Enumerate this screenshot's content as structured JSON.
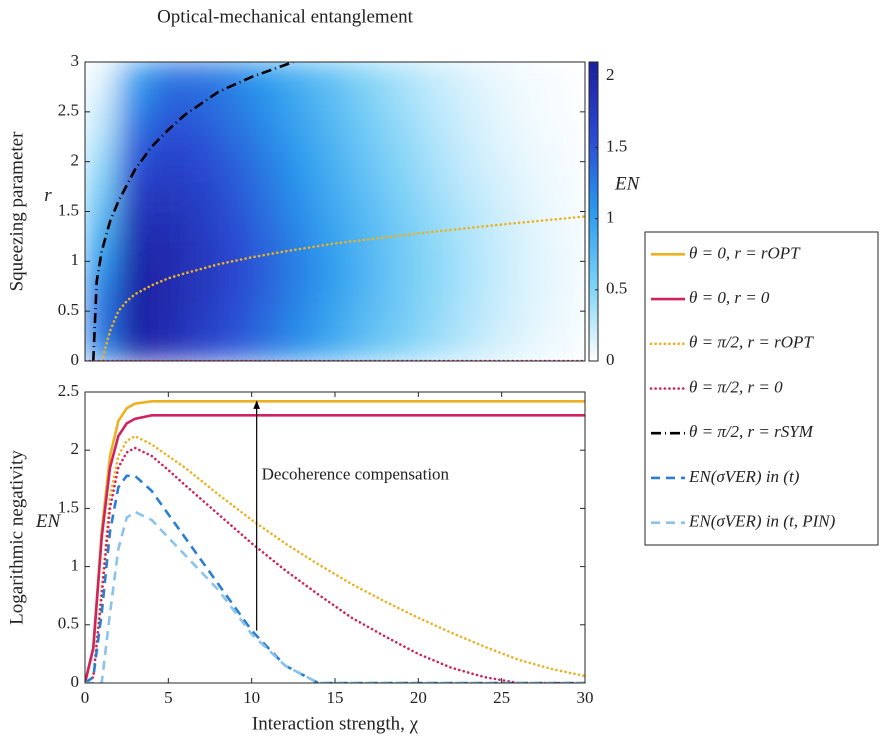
{
  "chart_data": [
    {
      "type": "heatmap",
      "title": "Optical-mechanical entanglement",
      "ylabel": "Squeezing parameter",
      "ylabel_symbol": "r",
      "xlim": [
        0,
        30
      ],
      "ylim": [
        0,
        3
      ],
      "yticks": [
        0,
        0.5,
        1,
        1.5,
        2,
        2.5,
        3
      ],
      "clim": [
        0,
        2.1
      ],
      "cticks": [
        0,
        0.5,
        1,
        1.5,
        2
      ],
      "clabel": "EN",
      "colormap": [
        "#ffffff",
        "#7fd3f7",
        "#2a9bee",
        "#2b49d2",
        "#1c1f9e"
      ],
      "x": [
        1,
        3,
        5,
        7,
        9,
        11,
        13,
        15,
        17,
        19,
        21,
        23,
        25,
        27,
        29
      ],
      "y": [
        0.15,
        0.45,
        0.75,
        1.05,
        1.35,
        1.65,
        1.95,
        2.25,
        2.55,
        2.85
      ],
      "z": [
        [
          1.2,
          2.0,
          1.9,
          1.7,
          1.5,
          1.3,
          1.1,
          0.9,
          0.7,
          0.55,
          0.4,
          0.28,
          0.18,
          0.1,
          0.05
        ],
        [
          1.3,
          2.05,
          1.95,
          1.75,
          1.55,
          1.35,
          1.15,
          0.95,
          0.75,
          0.6,
          0.45,
          0.32,
          0.2,
          0.12,
          0.06
        ],
        [
          1.2,
          2.05,
          1.95,
          1.8,
          1.6,
          1.4,
          1.2,
          1.0,
          0.8,
          0.62,
          0.47,
          0.34,
          0.22,
          0.13,
          0.07
        ],
        [
          1.0,
          2.0,
          1.95,
          1.8,
          1.6,
          1.4,
          1.2,
          1.0,
          0.8,
          0.62,
          0.47,
          0.34,
          0.22,
          0.13,
          0.07
        ],
        [
          0.8,
          1.9,
          1.9,
          1.75,
          1.55,
          1.35,
          1.15,
          0.95,
          0.77,
          0.6,
          0.45,
          0.32,
          0.21,
          0.12,
          0.06
        ],
        [
          0.6,
          1.75,
          1.8,
          1.7,
          1.5,
          1.3,
          1.1,
          0.9,
          0.72,
          0.55,
          0.4,
          0.28,
          0.18,
          0.1,
          0.05
        ],
        [
          0.45,
          1.55,
          1.7,
          1.6,
          1.45,
          1.25,
          1.05,
          0.85,
          0.67,
          0.5,
          0.36,
          0.24,
          0.15,
          0.08,
          0.04
        ],
        [
          0.3,
          1.35,
          1.6,
          1.5,
          1.35,
          1.17,
          0.98,
          0.8,
          0.62,
          0.46,
          0.32,
          0.21,
          0.12,
          0.06,
          0.03
        ],
        [
          0.2,
          1.15,
          1.45,
          1.4,
          1.27,
          1.1,
          0.92,
          0.74,
          0.56,
          0.41,
          0.28,
          0.18,
          0.1,
          0.05,
          0.02
        ],
        [
          0.1,
          0.95,
          1.3,
          1.3,
          1.2,
          1.02,
          0.85,
          0.68,
          0.5,
          0.36,
          0.24,
          0.15,
          0.08,
          0.04,
          0.02
        ]
      ],
      "series": [
        {
          "color": "#000000",
          "dash": "dashdot",
          "x": [
            0.5,
            0.7,
            1,
            1.5,
            2,
            3,
            4,
            5,
            6,
            8,
            10,
            12.5
          ],
          "values": [
            0,
            0.8,
            1.1,
            1.4,
            1.6,
            1.92,
            2.15,
            2.32,
            2.47,
            2.7,
            2.85,
            3.0
          ]
        },
        {
          "color": "#edb120",
          "dash": "dotted",
          "x": [
            1,
            1.5,
            2,
            2.5,
            3,
            4,
            5,
            6,
            8,
            10,
            12,
            15,
            20,
            25,
            30
          ],
          "values": [
            0,
            0.3,
            0.5,
            0.6,
            0.67,
            0.76,
            0.83,
            0.88,
            0.97,
            1.04,
            1.1,
            1.18,
            1.28,
            1.37,
            1.45
          ]
        },
        {
          "color": "#cf2361",
          "dash": "dotted",
          "x": [
            0,
            30
          ],
          "values": [
            0,
            0
          ]
        }
      ]
    },
    {
      "type": "line",
      "xlabel": "Interaction strength, χ",
      "ylabel": "Logarithmic negativity",
      "ylabel_symbol": "EN",
      "xlim": [
        0,
        30
      ],
      "ylim": [
        0,
        2.5
      ],
      "xticks": [
        0,
        5,
        10,
        15,
        20,
        25,
        30
      ],
      "yticks": [
        0,
        0.5,
        1,
        1.5,
        2,
        2.5
      ],
      "annotation": {
        "text": "Decoherence compensation",
        "x": 10.6,
        "y": 1.78,
        "arrow_x": 10.3,
        "arrow_from": 0.45,
        "arrow_to": 2.42
      },
      "x": [
        0,
        0.5,
        1,
        1.5,
        2,
        2.5,
        3,
        4,
        5,
        6,
        8,
        10,
        12,
        14,
        16,
        18,
        20,
        22,
        24,
        26,
        28,
        30
      ],
      "series": [
        {
          "name": "θ = 0, r = rOPT",
          "color": "#edb120",
          "dash": "solid",
          "values": [
            0,
            0.3,
            1.3,
            1.95,
            2.25,
            2.36,
            2.4,
            2.42,
            2.42,
            2.42,
            2.42,
            2.42,
            2.42,
            2.42,
            2.42,
            2.42,
            2.42,
            2.42,
            2.42,
            2.42,
            2.42,
            2.42
          ]
        },
        {
          "name": "θ = 0, r = 0",
          "color": "#cf2361",
          "dash": "solid",
          "values": [
            0,
            0.3,
            1.25,
            1.85,
            2.12,
            2.23,
            2.27,
            2.3,
            2.3,
            2.3,
            2.3,
            2.3,
            2.3,
            2.3,
            2.3,
            2.3,
            2.3,
            2.3,
            2.3,
            2.3,
            2.3,
            2.3
          ]
        },
        {
          "name": "θ = π/2, r = rOPT",
          "color": "#edb120",
          "dash": "dotted",
          "values": [
            0,
            0.05,
            0.8,
            1.6,
            1.95,
            2.08,
            2.12,
            2.05,
            1.95,
            1.85,
            1.62,
            1.4,
            1.2,
            1.02,
            0.85,
            0.7,
            0.56,
            0.43,
            0.31,
            0.2,
            0.12,
            0.06
          ]
        },
        {
          "name": "θ = π/2, r = 0",
          "color": "#cf2361",
          "dash": "dotted",
          "values": [
            0,
            0.05,
            0.75,
            1.5,
            1.85,
            1.98,
            2.02,
            1.95,
            1.83,
            1.7,
            1.45,
            1.2,
            0.97,
            0.76,
            0.56,
            0.4,
            0.25,
            0.13,
            0.05,
            0,
            0,
            0
          ]
        },
        {
          "name": "θ = π/2, r = rSYM",
          "color": "#000000",
          "dash": "dashdot",
          "values": [
            null,
            null,
            null,
            null,
            null,
            null,
            null,
            null,
            null,
            null,
            null,
            null,
            null,
            null,
            null,
            null,
            null,
            null,
            null,
            null,
            null,
            null
          ]
        },
        {
          "name": "EN(σVER) in (t)",
          "color": "#2b7fd2",
          "dash": "dashed",
          "values": [
            0,
            0.05,
            0.6,
            1.3,
            1.68,
            1.78,
            1.78,
            1.65,
            1.45,
            1.25,
            0.85,
            0.45,
            0.15,
            0,
            0,
            0,
            0,
            0,
            0,
            0,
            0,
            0
          ]
        },
        {
          "name": "EN(σVER) in (t, PIN)",
          "color": "#8cc3ea",
          "dash": "dashed",
          "values": [
            0,
            0,
            0,
            0.6,
            1.15,
            1.42,
            1.47,
            1.4,
            1.25,
            1.1,
            0.8,
            0.42,
            0.15,
            0,
            0,
            0,
            0,
            0,
            0,
            0,
            0,
            0
          ]
        }
      ]
    }
  ]
}
